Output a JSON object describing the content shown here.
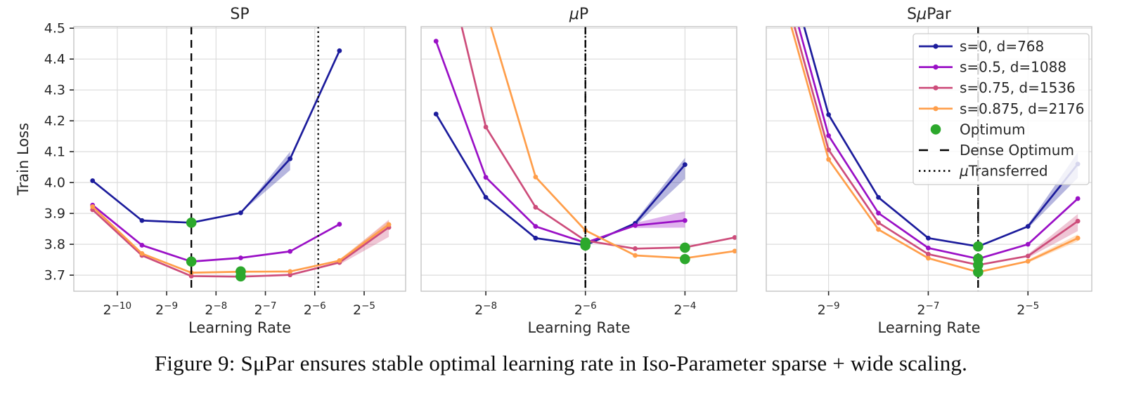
{
  "figure": {
    "caption": "Figure 9: SμPar ensures stable optimal learning rate in Iso-Parameter sparse + wide scaling.",
    "background": "#ffffff"
  },
  "palette": {
    "navy": "#1c1c9c",
    "purple": "#9a10c6",
    "pink": "#cd4d7b",
    "orange": "#ff9e4a",
    "green": "#2ca82c",
    "grid": "#dcdcdc",
    "spine": "#c4c4c4",
    "text": "#262626",
    "vline": "#000000"
  },
  "legend": {
    "position": "upper-right-third-subplot",
    "entries": [
      {
        "type": "line",
        "color": "navy",
        "label": "s=0, d=768"
      },
      {
        "type": "line",
        "color": "purple",
        "label": "s=0.5, d=1088"
      },
      {
        "type": "line",
        "color": "pink",
        "label": "s=0.75, d=1536"
      },
      {
        "type": "line",
        "color": "orange",
        "label": "s=0.875, d=2176"
      },
      {
        "type": "dot",
        "color": "green",
        "label": "Optimum"
      },
      {
        "type": "dashed",
        "color": "vline",
        "label": "Dense Optimum"
      },
      {
        "type": "dotted",
        "color": "vline",
        "label": "μTransferred"
      }
    ]
  },
  "chart_data": {
    "type": "line",
    "x_scale": "log2",
    "xlabel": "Learning Rate",
    "ylabel": "Train Loss",
    "grid": "on",
    "y_domain": [
      3.648,
      4.505
    ],
    "y_ticks": [
      3.7,
      3.8,
      3.9,
      4.0,
      4.1,
      4.2,
      4.3,
      4.4,
      4.5
    ],
    "subplots": [
      {
        "title": "SP",
        "x_domain": [
          -10.88,
          -4.16
        ],
        "x_tick_exponents": [
          -10,
          -9,
          -8,
          -7,
          -6,
          -5
        ],
        "x_tick_labels": [
          "2⁻¹⁰",
          "2⁻⁹",
          "2⁻⁸",
          "2⁻⁷",
          "2⁻⁶",
          "2⁻⁵"
        ],
        "show_y_tick_labels": true,
        "legend": false,
        "series": [
          {
            "name": "s=0, d=768",
            "color": "navy",
            "x_log2": [
              -10.5,
              -9.5,
              -8.5,
              -7.5,
              -6.5,
              -5.5
            ],
            "loss": [
              4.006,
              3.877,
              3.87,
              3.902,
              4.077,
              4.427
            ]
          },
          {
            "name": "s=0.5, d=1088",
            "color": "purple",
            "x_log2": [
              -10.5,
              -9.5,
              -8.5,
              -7.5,
              -6.5,
              -5.5
            ],
            "loss": [
              3.927,
              3.797,
              3.744,
              3.756,
              3.777,
              3.865
            ]
          },
          {
            "name": "s=0.75, d=1536",
            "color": "pink",
            "x_log2": [
              -10.5,
              -9.5,
              -8.5,
              -7.5,
              -6.5,
              -5.5,
              -4.5
            ],
            "loss": [
              3.912,
              3.764,
              3.697,
              3.695,
              3.701,
              3.741,
              3.855
            ]
          },
          {
            "name": "s=0.875, d=2176",
            "color": "orange",
            "x_log2": [
              -10.5,
              -9.5,
              -8.5,
              -7.5,
              -6.5,
              -5.5,
              -4.5
            ],
            "loss": [
              3.922,
              3.77,
              3.708,
              3.711,
              3.712,
              3.747,
              3.864
            ]
          }
        ],
        "bands": [
          {
            "color": "navy",
            "x_log2": [
              -7.5,
              -6.5
            ],
            "lower": [
              3.902,
              4.04
            ],
            "upper": [
              3.902,
              4.1
            ]
          },
          {
            "color": "pink",
            "x_log2": [
              -5.5,
              -4.5
            ],
            "lower": [
              3.734,
              3.824
            ],
            "upper": [
              3.748,
              3.88
            ]
          },
          {
            "color": "orange",
            "x_log2": [
              -5.5,
              -4.5
            ],
            "lower": [
              3.743,
              3.853
            ],
            "upper": [
              3.752,
              3.876
            ]
          }
        ],
        "optima": [
          {
            "x_log2": -8.5,
            "loss": 3.87
          },
          {
            "x_log2": -8.5,
            "loss": 3.744
          },
          {
            "x_log2": -7.5,
            "loss": 3.712
          },
          {
            "x_log2": -7.5,
            "loss": 3.696
          }
        ],
        "vlines": [
          {
            "style": "dashed",
            "x_log2": -8.5,
            "meaning": "Dense Optimum"
          },
          {
            "style": "dotted",
            "x_log2": -5.93,
            "meaning": "μTransferred"
          }
        ]
      },
      {
        "title": "μP",
        "x_domain": [
          -9.3,
          -2.96
        ],
        "x_tick_exponents": [
          -8,
          -6,
          -4
        ],
        "x_tick_labels": [
          "2⁻⁸",
          "2⁻⁶",
          "2⁻⁴"
        ],
        "show_y_tick_labels": false,
        "legend": false,
        "series": [
          {
            "name": "s=0, d=768",
            "color": "navy",
            "x_log2": [
              -9,
              -8,
              -7,
              -6,
              -5,
              -4
            ],
            "loss": [
              4.222,
              3.952,
              3.82,
              3.797,
              3.868,
              4.058
            ]
          },
          {
            "name": "s=0.5, d=1088",
            "color": "purple",
            "x_log2": [
              -9,
              -8,
              -7,
              -6,
              -5,
              -4
            ],
            "loss": [
              4.458,
              4.017,
              3.858,
              3.805,
              3.861,
              3.877
            ]
          },
          {
            "name": "s=0.75, d=1536",
            "color": "pink",
            "x_log2": [
              -9,
              -8,
              -7,
              -6,
              -5,
              -4,
              -3
            ],
            "loss": [
              4.85,
              4.18,
              3.92,
              3.812,
              3.786,
              3.79,
              3.822
            ]
          },
          {
            "name": "s=0.875, d=2176",
            "color": "orange",
            "x_log2": [
              -8,
              -7,
              -6,
              -5,
              -4,
              -3
            ],
            "loss": [
              4.56,
              4.018,
              3.845,
              3.764,
              3.755,
              3.778
            ]
          }
        ],
        "bands": [
          {
            "color": "navy",
            "x_log2": [
              -5,
              -4
            ],
            "lower": [
              3.86,
              4.012
            ],
            "upper": [
              3.876,
              4.08
            ]
          },
          {
            "color": "purple",
            "x_log2": [
              -5,
              -4
            ],
            "lower": [
              3.853,
              3.854
            ],
            "upper": [
              3.869,
              3.907
            ]
          }
        ],
        "optima": [
          {
            "x_log2": -6,
            "loss": 3.806
          },
          {
            "x_log2": -6,
            "loss": 3.796
          },
          {
            "x_log2": -4,
            "loss": 3.789
          },
          {
            "x_log2": -4,
            "loss": 3.752
          }
        ],
        "vlines": [
          {
            "style": "dashed",
            "x_log2": -6,
            "meaning": "Dense Optimum"
          },
          {
            "style": "dotted",
            "x_log2": -6,
            "meaning": "μTransferred"
          }
        ]
      },
      {
        "title": "SμPar",
        "x_domain": [
          -10.25,
          -3.72
        ],
        "x_tick_exponents": [
          -9,
          -7,
          -5
        ],
        "x_tick_labels": [
          "2⁻⁹",
          "2⁻⁷",
          "2⁻⁵"
        ],
        "show_y_tick_labels": false,
        "legend": true,
        "series": [
          {
            "name": "s=0, d=768",
            "color": "navy",
            "x_log2": [
              -10,
              -9,
              -8,
              -7,
              -6,
              -5,
              -4
            ],
            "loss": [
              4.8,
              4.22,
              3.952,
              3.82,
              3.793,
              3.858,
              4.06
            ]
          },
          {
            "name": "s=0.5, d=1088",
            "color": "purple",
            "x_log2": [
              -10,
              -9,
              -8,
              -7,
              -6,
              -5,
              -4
            ],
            "loss": [
              4.74,
              4.152,
              3.901,
              3.788,
              3.753,
              3.8,
              3.948
            ]
          },
          {
            "name": "s=0.75, d=1536",
            "color": "pink",
            "x_log2": [
              -10,
              -9,
              -8,
              -7,
              -6,
              -5,
              -4
            ],
            "loss": [
              4.69,
              4.106,
              3.87,
              3.768,
              3.733,
              3.762,
              3.875
            ]
          },
          {
            "name": "s=0.875, d=2176",
            "color": "orange",
            "x_log2": [
              -10,
              -9,
              -8,
              -7,
              -6,
              -5,
              -4
            ],
            "loss": [
              4.65,
              4.075,
              3.848,
              3.755,
              3.71,
              3.745,
              3.82
            ]
          }
        ],
        "bands": [
          {
            "color": "navy",
            "x_log2": [
              -5,
              -4
            ],
            "lower": [
              3.852,
              4.015
            ],
            "upper": [
              3.864,
              4.098
            ]
          },
          {
            "color": "pink",
            "x_log2": [
              -5,
              -4
            ],
            "lower": [
              3.756,
              3.843
            ],
            "upper": [
              3.768,
              3.898
            ]
          },
          {
            "color": "orange",
            "x_log2": [
              -5,
              -4
            ],
            "lower": [
              3.74,
              3.81
            ],
            "upper": [
              3.75,
              3.832
            ]
          }
        ],
        "optima": [
          {
            "x_log2": -6,
            "loss": 3.793
          },
          {
            "x_log2": -6,
            "loss": 3.753
          },
          {
            "x_log2": -6,
            "loss": 3.733
          },
          {
            "x_log2": -6,
            "loss": 3.71
          }
        ],
        "vlines": [
          {
            "style": "dashed",
            "x_log2": -6,
            "meaning": "Dense Optimum"
          },
          {
            "style": "dotted",
            "x_log2": -6,
            "meaning": "μTransferred"
          }
        ]
      }
    ]
  }
}
